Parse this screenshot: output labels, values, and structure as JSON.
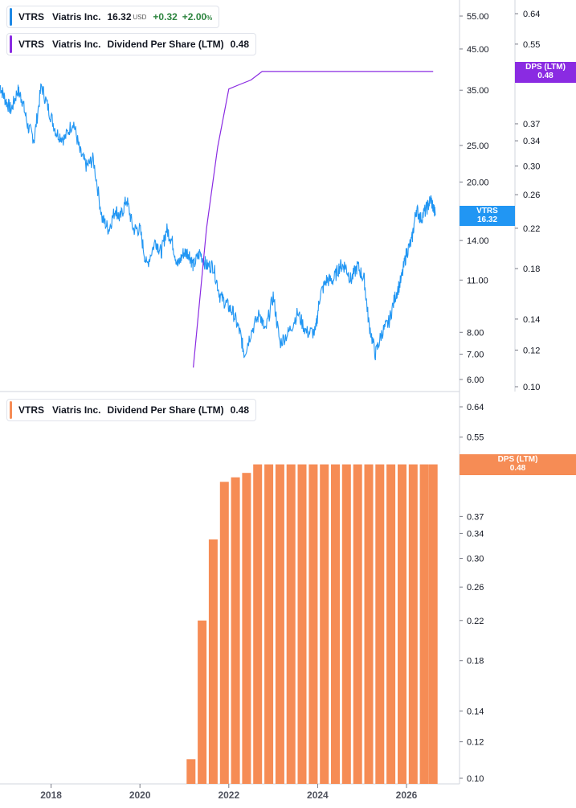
{
  "legends": {
    "price": {
      "symbol": "VTRS",
      "name": "Viatris Inc.",
      "value": "16.32",
      "currency": "USD",
      "change": "+0.32",
      "change_pct": "+2.00",
      "pct_sign": "%",
      "color": "#1e88e5"
    },
    "dps_top": {
      "symbol": "VTRS",
      "name": "Viatris Inc.",
      "metric": "Dividend Per Share (LTM)",
      "value": "0.48",
      "color": "#8a2be2"
    },
    "dps_bottom": {
      "symbol": "VTRS",
      "name": "Viatris Inc.",
      "metric": "Dividend Per Share (LTM)",
      "value": "0.48",
      "color": "#f68c55"
    }
  },
  "tags": {
    "price": {
      "line1": "VTRS",
      "line2": "16.32",
      "color": "#2196f3"
    },
    "dps_top": {
      "line1": "DPS (LTM)",
      "line2": "0.48",
      "color": "#8a2be2"
    },
    "dps_bottom": {
      "line1": "DPS (LTM)",
      "line2": "0.48",
      "color": "#f68c55"
    }
  },
  "chart_data": [
    {
      "type": "line",
      "name": "VTRS price (USD)",
      "y_scale": "log",
      "y_ticks": [
        "55.00",
        "45.00",
        "35.00",
        "25.00",
        "20.00",
        "14.00",
        "11.00",
        "8.00",
        "7.00",
        "6.00"
      ],
      "x_range": [
        2016.85,
        2026.65
      ],
      "x": [
        2016.85,
        2016.97,
        2017.1,
        2017.25,
        2017.35,
        2017.48,
        2017.62,
        2017.78,
        2017.95,
        2018.12,
        2018.3,
        2018.5,
        2018.65,
        2018.8,
        2018.95,
        2019.15,
        2019.3,
        2019.45,
        2019.55,
        2019.7,
        2019.85,
        2020.0,
        2020.15,
        2020.35,
        2020.48,
        2020.6,
        2020.72,
        2020.85,
        2020.98,
        2021.1,
        2021.2,
        2021.35,
        2021.5,
        2021.65,
        2021.8,
        2021.95,
        2022.1,
        2022.25,
        2022.35,
        2022.5,
        2022.7,
        2022.82,
        2023.0,
        2023.15,
        2023.35,
        2023.55,
        2023.75,
        2023.95,
        2024.05,
        2024.2,
        2024.35,
        2024.5,
        2024.62,
        2024.75,
        2024.9,
        2025.05,
        2025.15,
        2025.3,
        2025.45,
        2025.6,
        2025.75,
        2025.88,
        2026.0,
        2026.12,
        2026.22,
        2026.32,
        2026.45,
        2026.55,
        2026.65
      ],
      "y": [
        36,
        33,
        31,
        35,
        33,
        28,
        26,
        36,
        31,
        27,
        26,
        29,
        24,
        22,
        23,
        16,
        15,
        17,
        16,
        18,
        15,
        15,
        12,
        14,
        13,
        15,
        14,
        12,
        13,
        13,
        12,
        13,
        12,
        12,
        10,
        9.5,
        9,
        8,
        7,
        8,
        9,
        8,
        10,
        7.5,
        8,
        9,
        8,
        8,
        10,
        11,
        11,
        12,
        12,
        11,
        12,
        11,
        8.5,
        7,
        8,
        8.5,
        10,
        11,
        13,
        14,
        17,
        16,
        17,
        18,
        16.32
      ]
    },
    {
      "type": "line",
      "name": "Dividend Per Share (LTM)",
      "y_scale": "log",
      "y_ticks": [
        "0.64",
        "0.55",
        "0.37",
        "0.34",
        "0.30",
        "0.26",
        "0.22",
        "0.18",
        "0.14",
        "0.12",
        "0.10"
      ],
      "x": [
        2021.2,
        2021.5,
        2021.75,
        2022.0,
        2022.25,
        2022.5,
        2022.75,
        2023.0,
        2024.0,
        2025.0,
        2026.0,
        2026.6
      ],
      "y": [
        0.11,
        0.22,
        0.33,
        0.44,
        0.45,
        0.46,
        0.48,
        0.48,
        0.48,
        0.48,
        0.48,
        0.48
      ]
    },
    {
      "type": "bar",
      "name": "Dividend Per Share (LTM)",
      "y_scale": "log",
      "y_ticks": [
        "0.64",
        "0.55",
        "0.37",
        "0.34",
        "0.30",
        "0.26",
        "0.22",
        "0.18",
        "0.14",
        "0.12",
        "0.10"
      ],
      "x_ticks": [
        "2018",
        "2020",
        "2022",
        "2024",
        "2026"
      ],
      "x_tick_values": [
        2018,
        2020,
        2022,
        2024,
        2026
      ],
      "x": [
        2021.15,
        2021.4,
        2021.65,
        2021.9,
        2022.15,
        2022.4,
        2022.65,
        2022.9,
        2023.15,
        2023.4,
        2023.65,
        2023.9,
        2024.15,
        2024.4,
        2024.65,
        2024.9,
        2025.15,
        2025.4,
        2025.65,
        2025.9,
        2026.15,
        2026.4,
        2026.6
      ],
      "y": [
        0.11,
        0.22,
        0.33,
        0.44,
        0.45,
        0.46,
        0.48,
        0.48,
        0.48,
        0.48,
        0.48,
        0.48,
        0.48,
        0.48,
        0.48,
        0.48,
        0.48,
        0.48,
        0.48,
        0.48,
        0.48,
        0.48,
        0.48
      ]
    }
  ]
}
